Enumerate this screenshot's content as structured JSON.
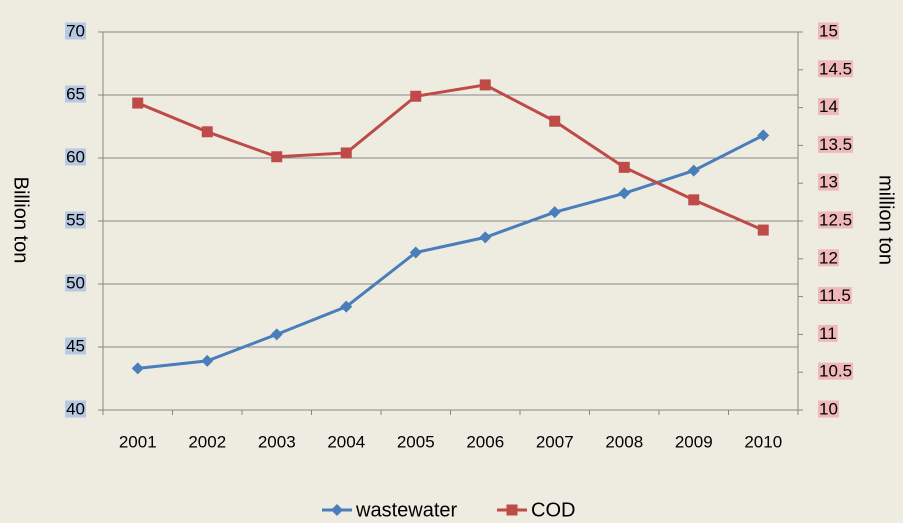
{
  "chart_data": {
    "type": "line",
    "categories": [
      "2001",
      "2002",
      "2003",
      "2004",
      "2005",
      "2006",
      "2007",
      "2008",
      "2009",
      "2010"
    ],
    "series": [
      {
        "name": "wastewater",
        "color": "#4a7ebb",
        "marker": "diamond",
        "axis": "y",
        "values": [
          43.3,
          43.9,
          46.0,
          48.2,
          52.5,
          53.7,
          55.7,
          57.2,
          59.0,
          61.8
        ]
      },
      {
        "name": "COD",
        "color": "#be4b48",
        "marker": "square",
        "axis": "y2",
        "values": [
          14.06,
          13.68,
          13.35,
          13.4,
          14.15,
          14.3,
          13.82,
          13.21,
          12.78,
          12.38
        ]
      }
    ],
    "ylabel": "Billion  ton",
    "y2label": "million  ton",
    "ylim": [
      40,
      70
    ],
    "yticks": [
      40,
      45,
      50,
      55,
      60,
      65,
      70
    ],
    "y2lim": [
      10,
      15
    ],
    "y2ticks": [
      10,
      10.5,
      11,
      11.5,
      12,
      12.5,
      13,
      13.5,
      14,
      14.5,
      15
    ],
    "grid": true,
    "legend": "bottom"
  }
}
